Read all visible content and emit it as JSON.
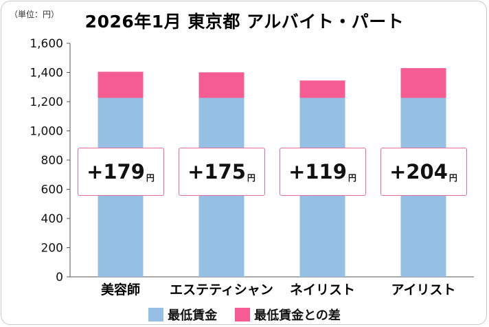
{
  "unit_label": "（単位：円）",
  "title": "2026年1月 東京都 アルバイト・パート",
  "colors": {
    "base": "#95bfe3",
    "diff": "#f45c92",
    "label_border": "#e56b9b"
  },
  "chart_data": {
    "type": "bar",
    "stacked": true,
    "categories": [
      "美容師",
      "エステティシャン",
      "ネイリスト",
      "アイリスト"
    ],
    "series": [
      {
        "name": "最低賃金",
        "values": [
          1226,
          1226,
          1226,
          1226
        ]
      },
      {
        "name": "最低賃金との差",
        "values": [
          179,
          175,
          119,
          204
        ]
      }
    ],
    "diff_labels": [
      "+179",
      "+175",
      "+119",
      "+204"
    ],
    "diff_unit": "円",
    "y_ticks": [
      "0",
      "200",
      "400",
      "600",
      "800",
      "1,000",
      "1,200",
      "1,400",
      "1,600"
    ],
    "ylim": [
      0,
      1600
    ],
    "grid": false,
    "legend_position": "bottom"
  }
}
